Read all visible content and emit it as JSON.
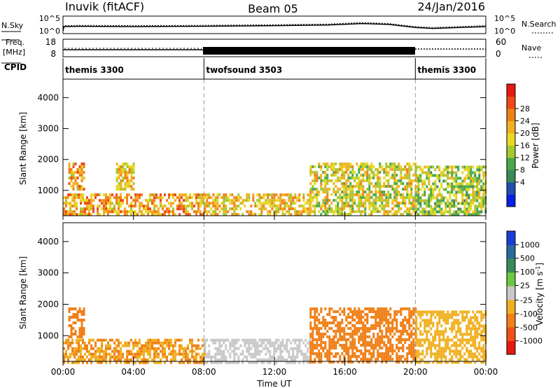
{
  "header": {
    "site": "Inuvik (fitACF)",
    "beam": "Beam 05",
    "date": "24/Jan/2016"
  },
  "noise_panel": {
    "left_label": "N.Sky",
    "right_label": "N.Search",
    "left_ticks": [
      "10^5",
      "10^0"
    ],
    "right_ticks": [
      "10^5",
      "10^0"
    ]
  },
  "freq_panel": {
    "left_label_1": "Freq.",
    "left_label_2": "[MHz]",
    "right_label": "Nave",
    "left_ticks": [
      "18",
      "8"
    ],
    "right_ticks": [
      "60",
      "0"
    ]
  },
  "cpid": {
    "label": "CPID",
    "segments": [
      {
        "name": "themis 3300",
        "start_h": 0,
        "end_h": 8
      },
      {
        "name": "twofsound 3503",
        "start_h": 8,
        "end_h": 20
      },
      {
        "name": "themis 3300",
        "start_h": 20,
        "end_h": 24
      }
    ]
  },
  "x_axis": {
    "label": "Time UT",
    "ticks": [
      "00:00",
      "04:00",
      "08:00",
      "12:00",
      "16:00",
      "20:00",
      "00:00"
    ]
  },
  "power_panel": {
    "ylabel": "Slant Range [km]",
    "yticks": [
      "1000",
      "2000",
      "3000",
      "4000"
    ],
    "cbar_label": "Power [dB]",
    "cbar_ticks": [
      "4",
      "8",
      "12",
      "16",
      "20",
      "24",
      "28"
    ],
    "cbar_colors": [
      "#0a1ee8",
      "#1f4fb0",
      "#3a8a58",
      "#4aa84a",
      "#a6c830",
      "#e8d820",
      "#f0b020",
      "#f08018",
      "#f04818",
      "#e81810"
    ]
  },
  "velocity_panel": {
    "ylabel": "Slant Range [km]",
    "yticks": [
      "1000",
      "2000",
      "3000",
      "4000"
    ],
    "cbar_label": "Velocity [m s",
    "cbar_label_sup": "-1",
    "cbar_label_end": "]",
    "cbar_ticks": [
      "1000",
      "500",
      "100",
      "25",
      "-25",
      "-100",
      "-500",
      "-1000"
    ],
    "cbar_colors": [
      "#1a3fd8",
      "#2a6a9a",
      "#3a8a58",
      "#6cc840",
      "#c8c8c8",
      "#f0b020",
      "#f08018",
      "#f05018",
      "#e81810"
    ]
  },
  "chart_data": {
    "type": "heatmap",
    "x_range_hours": [
      0,
      24
    ],
    "y_range_km": [
      180,
      4600
    ],
    "noise_levels_log10": [
      {
        "h": 0,
        "v": 0.2
      },
      {
        "h": 0.05,
        "v": 1.6
      },
      {
        "h": 1,
        "v": 1.7
      },
      {
        "h": 4,
        "v": 1.6
      },
      {
        "h": 8,
        "v": 1.7
      },
      {
        "h": 12,
        "v": 1.9
      },
      {
        "h": 15,
        "v": 2.1
      },
      {
        "h": 17,
        "v": 2.6
      },
      {
        "h": 18.5,
        "v": 2.3
      },
      {
        "h": 20,
        "v": 1.3
      },
      {
        "h": 21,
        "v": 1.0
      },
      {
        "h": 24,
        "v": 1.6
      }
    ],
    "power_regions": [
      {
        "h0": 0.0,
        "h1": 8.0,
        "r0": 180,
        "r1": 900,
        "power": 22
      },
      {
        "h0": 0.3,
        "h1": 1.2,
        "r0": 1000,
        "r1": 1900,
        "power": 22
      },
      {
        "h0": 3.0,
        "h1": 4.0,
        "r0": 1000,
        "r1": 1900,
        "power": 20
      },
      {
        "h0": 8.0,
        "h1": 14.0,
        "r0": 180,
        "r1": 900,
        "power": 20
      },
      {
        "h0": 14.0,
        "h1": 20.0,
        "r0": 180,
        "r1": 1900,
        "power": 18
      },
      {
        "h0": 20.0,
        "h1": 24.0,
        "r0": 180,
        "r1": 1800,
        "power": 16
      }
    ],
    "velocity_regions": [
      {
        "h0": 0.3,
        "h1": 1.2,
        "r0": 1000,
        "r1": 1900,
        "velocity": -300
      },
      {
        "h0": 0.0,
        "h1": 8.0,
        "r0": 180,
        "r1": 900,
        "velocity": -100
      },
      {
        "h0": 8.0,
        "h1": 14.0,
        "r0": 180,
        "r1": 900,
        "velocity": 0
      },
      {
        "h0": 14.0,
        "h1": 20.0,
        "r0": 180,
        "r1": 1900,
        "velocity": -150
      },
      {
        "h0": 20.0,
        "h1": 24.0,
        "r0": 180,
        "r1": 1800,
        "velocity": -80
      }
    ]
  }
}
